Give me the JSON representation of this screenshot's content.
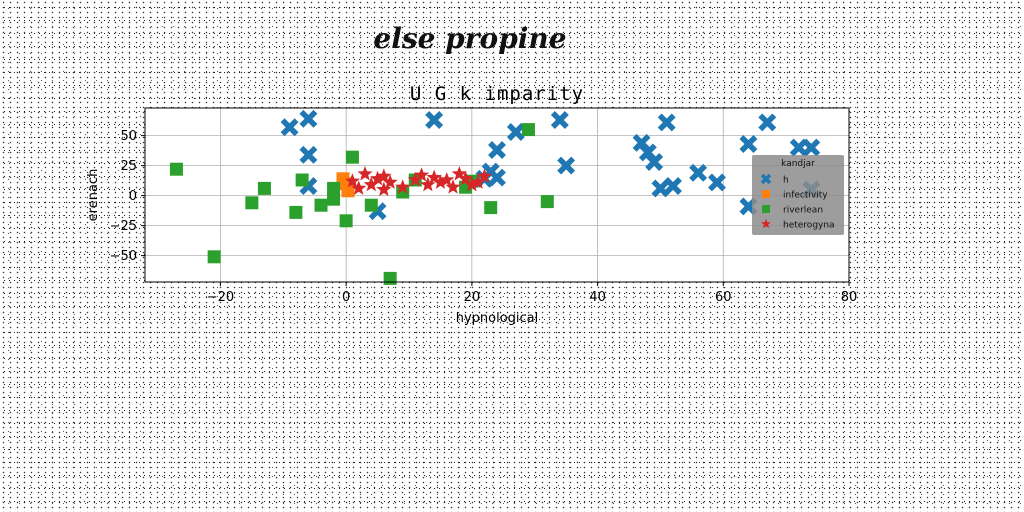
{
  "suptitle": "else propine",
  "chart_data": {
    "type": "scatter",
    "title": "U G k imparity",
    "xlabel": "hypnological",
    "ylabel": "erenach",
    "xlim": [
      -32,
      80
    ],
    "ylim": [
      -72,
      73
    ],
    "xticks": [
      -20,
      0,
      20,
      40,
      60,
      80
    ],
    "yticks": [
      -50,
      -25,
      0,
      25,
      50
    ],
    "grid": true,
    "legend": {
      "title": "kandjar",
      "placement": "right"
    },
    "series": [
      {
        "name": "h",
        "marker": "X",
        "color": "#1f77b4",
        "points": [
          [
            -9,
            57
          ],
          [
            -6,
            64
          ],
          [
            -6,
            34
          ],
          [
            -6,
            8
          ],
          [
            5,
            -13
          ],
          [
            14,
            63
          ],
          [
            22,
            14
          ],
          [
            23,
            20
          ],
          [
            24,
            15
          ],
          [
            24,
            38
          ],
          [
            27,
            53
          ],
          [
            34,
            63
          ],
          [
            35,
            25
          ],
          [
            47,
            44
          ],
          [
            48,
            36
          ],
          [
            49,
            28
          ],
          [
            50,
            6
          ],
          [
            51,
            61
          ],
          [
            52,
            8
          ],
          [
            56,
            19
          ],
          [
            59,
            11
          ],
          [
            64,
            43
          ],
          [
            64,
            -9
          ],
          [
            67,
            61
          ],
          [
            72,
            40
          ],
          [
            74,
            40
          ],
          [
            74,
            5
          ]
        ]
      },
      {
        "name": "infectivity",
        "marker": "s",
        "color": "#ff7f0e",
        "points": [
          [
            -0.5,
            14
          ],
          [
            0,
            10
          ],
          [
            0.3,
            4
          ]
        ]
      },
      {
        "name": "riverlean",
        "marker": "s",
        "color": "#2ca02c",
        "points": [
          [
            -27,
            22
          ],
          [
            -21,
            -51
          ],
          [
            -15,
            -6
          ],
          [
            -13,
            6
          ],
          [
            -8,
            -14
          ],
          [
            -7,
            13
          ],
          [
            -4,
            -8
          ],
          [
            -2,
            -3
          ],
          [
            -2,
            6
          ],
          [
            0,
            -21
          ],
          [
            1,
            32
          ],
          [
            4,
            -8
          ],
          [
            7,
            -69
          ],
          [
            9,
            3
          ],
          [
            11,
            13
          ],
          [
            19,
            7
          ],
          [
            20,
            12
          ],
          [
            23,
            -10
          ],
          [
            29,
            55
          ],
          [
            32,
            -5
          ]
        ]
      },
      {
        "name": "heterogyna",
        "marker": "*",
        "color": "#d62728",
        "points": [
          [
            1,
            12
          ],
          [
            2,
            6
          ],
          [
            3,
            18
          ],
          [
            4,
            9
          ],
          [
            5,
            14
          ],
          [
            6,
            16
          ],
          [
            6,
            5
          ],
          [
            7,
            11
          ],
          [
            9,
            7
          ],
          [
            11,
            13
          ],
          [
            12,
            17
          ],
          [
            13,
            9
          ],
          [
            14,
            15
          ],
          [
            15,
            11
          ],
          [
            16,
            13
          ],
          [
            17,
            7
          ],
          [
            18,
            18
          ],
          [
            19,
            14
          ],
          [
            20,
            9
          ],
          [
            21,
            11
          ],
          [
            22,
            16
          ]
        ]
      }
    ]
  }
}
